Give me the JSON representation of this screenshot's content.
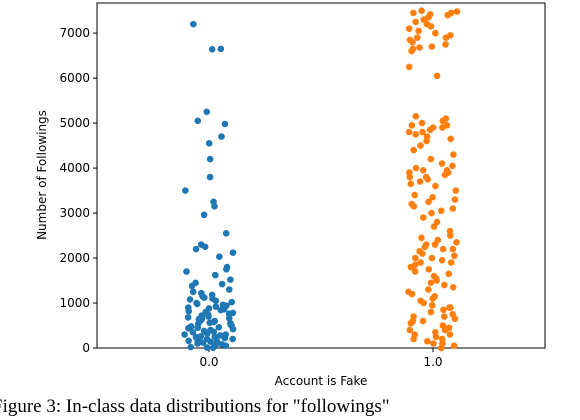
{
  "chart_data": {
    "type": "strip",
    "xlabel": "Account is Fake",
    "ylabel": "Number of Followings",
    "caption": "Figure 3: In-class data distributions for \"followings\"",
    "categories": [
      "0.0",
      "1.0"
    ],
    "colors": [
      "#1f77b4",
      "#ff7f0e"
    ],
    "ylim": [
      0,
      7670
    ],
    "yticks": [
      0,
      1000,
      2000,
      3000,
      4000,
      5000,
      6000,
      7000
    ],
    "values": [
      [
        7200,
        6650,
        6640,
        5250,
        5050,
        4980,
        4700,
        4550,
        4200,
        3800,
        3500,
        3250,
        3150,
        2960,
        2550,
        2300,
        2250,
        2200,
        2120,
        2030,
        1800,
        1750,
        1700,
        1620,
        1520,
        1450,
        1420,
        1380,
        1300,
        1250,
        1220,
        1180,
        1150,
        1120,
        1100,
        1080,
        1050,
        1020,
        1000,
        980,
        960,
        940,
        920,
        900,
        880,
        860,
        840,
        820,
        800,
        780,
        760,
        740,
        720,
        700,
        680,
        660,
        640,
        620,
        600,
        580,
        560,
        540,
        520,
        500,
        480,
        460,
        440,
        420,
        400,
        380,
        360,
        340,
        320,
        300,
        280,
        260,
        240,
        220,
        200,
        180,
        160,
        140,
        120,
        100,
        80,
        60,
        40,
        20,
        10,
        5,
        350,
        450,
        550,
        250,
        150,
        50,
        650,
        300,
        200,
        100
      ],
      [
        7500,
        7480,
        7450,
        7420,
        7400,
        7350,
        7300,
        7250,
        7200,
        7150,
        7100,
        7050,
        7000,
        6950,
        6900,
        6850,
        6800,
        6750,
        6700,
        6680,
        6650,
        6600,
        6250,
        6050,
        5150,
        5100,
        5050,
        5000,
        4950,
        4900,
        4850,
        4800,
        4750,
        4700,
        4650,
        4600,
        4500,
        4400,
        4300,
        4200,
        4100,
        4050,
        4000,
        3950,
        3900,
        3850,
        3800,
        3750,
        3700,
        3650,
        3600,
        3500,
        3400,
        3350,
        3300,
        3250,
        3200,
        3150,
        3100,
        3050,
        3000,
        2900,
        2800,
        2700,
        2600,
        2500,
        2450,
        2400,
        2350,
        2300,
        2250,
        2200,
        2150,
        2100,
        2050,
        2000,
        1950,
        1900,
        1850,
        1800,
        1750,
        1700,
        1650,
        1600,
        1550,
        1500,
        1450,
        1400,
        1350,
        1300,
        1250,
        1200,
        1150,
        1100,
        1050,
        1000,
        950,
        900,
        850,
        800,
        750,
        700,
        650,
        600,
        550,
        500,
        450,
        400,
        350,
        300,
        250,
        200,
        150,
        100,
        50,
        0,
        4900,
        4800,
        3900,
        3800,
        2200,
        2000,
        1800,
        900,
        600,
        300,
        100,
        7450,
        6900,
        4950,
        3950,
        2300,
        1900,
        700,
        400,
        200
      ]
    ]
  }
}
